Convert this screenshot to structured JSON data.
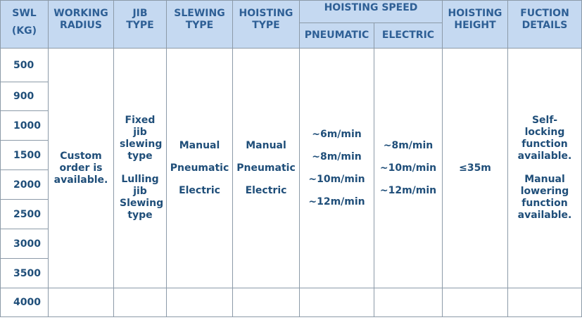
{
  "headers": {
    "swl": "SWL",
    "swl_unit": "(KG)",
    "working_radius": "WORKING RADIUS",
    "jib_type": "JIB TYPE",
    "slewing_type": "SLEWING TYPE",
    "hoisting_type": "HOISTING TYPE",
    "hoisting_speed": "HOISTING SPEED",
    "pneumatic": "PNEUMATIC",
    "electric": "ELECTRIC",
    "hoisting_height": "HOISTING HEIGHT",
    "function_details": "FUCTION DETAILS"
  },
  "swl_values": [
    "500",
    "900",
    "1000",
    "1500",
    "2000",
    "2500",
    "3000",
    "3500",
    "4000"
  ],
  "working_radius": "Custom order is available.",
  "jib_type": [
    "Fixed jib slewing type",
    "Lulling jib Slewing type"
  ],
  "slewing_type": [
    "Manual",
    "Pneumatic",
    "Electric"
  ],
  "hoisting_type": [
    "Manual",
    "Pneumatic",
    "Electric"
  ],
  "pneumatic_speed": [
    "~6m/min",
    "~8m/min",
    "~10m/min",
    "~12m/min"
  ],
  "electric_speed": [
    "~8m/min",
    "~10m/min",
    "~12m/min"
  ],
  "hoisting_height": "≤35m",
  "function_details": [
    "Self-locking function available.",
    "Manual lowering function available."
  ]
}
